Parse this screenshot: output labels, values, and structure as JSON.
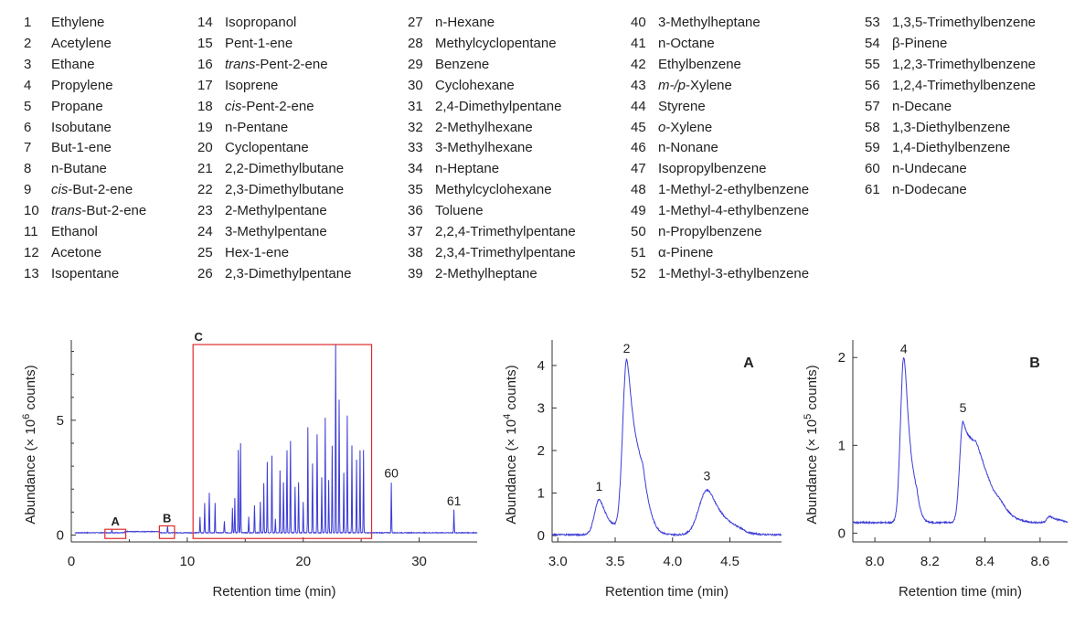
{
  "compound_legend": [
    {
      "n": "1",
      "name": "Ethylene"
    },
    {
      "n": "2",
      "name": "Acetylene"
    },
    {
      "n": "3",
      "name": "Ethane"
    },
    {
      "n": "4",
      "name": "Propylene"
    },
    {
      "n": "5",
      "name": "Propane"
    },
    {
      "n": "6",
      "name": "Isobutane"
    },
    {
      "n": "7",
      "name": "But-1-ene"
    },
    {
      "n": "8",
      "name": "n-Butane"
    },
    {
      "n": "9",
      "italic": "cis",
      "name": "-But-2-ene"
    },
    {
      "n": "10",
      "italic": "trans",
      "name": "-But-2-ene"
    },
    {
      "n": "11",
      "name": "Ethanol"
    },
    {
      "n": "12",
      "name": "Acetone"
    },
    {
      "n": "13",
      "name": "Isopentane"
    },
    {
      "n": "14",
      "name": "Isopropanol"
    },
    {
      "n": "15",
      "name": "Pent-1-ene"
    },
    {
      "n": "16",
      "italic": "trans",
      "name": "-Pent-2-ene"
    },
    {
      "n": "17",
      "name": "Isoprene"
    },
    {
      "n": "18",
      "italic": "cis",
      "name": "-Pent-2-ene"
    },
    {
      "n": "19",
      "name": "n-Pentane"
    },
    {
      "n": "20",
      "name": "Cyclopentane"
    },
    {
      "n": "21",
      "name": "2,2-Dimethylbutane"
    },
    {
      "n": "22",
      "name": "2,3-Dimethylbutane"
    },
    {
      "n": "23",
      "name": "2-Methylpentane"
    },
    {
      "n": "24",
      "name": "3-Methylpentane"
    },
    {
      "n": "25",
      "name": "Hex-1-ene"
    },
    {
      "n": "26",
      "name": "2,3-Dimethylpentane"
    },
    {
      "n": "27",
      "name": "n-Hexane"
    },
    {
      "n": "28",
      "name": "Methylcyclopentane"
    },
    {
      "n": "29",
      "name": "Benzene"
    },
    {
      "n": "30",
      "name": "Cyclohexane"
    },
    {
      "n": "31",
      "name": "2,4-Dimethylpentane"
    },
    {
      "n": "32",
      "name": "2-Methylhexane"
    },
    {
      "n": "33",
      "name": "3-Methylhexane"
    },
    {
      "n": "34",
      "name": "n-Heptane"
    },
    {
      "n": "35",
      "name": "Methylcyclohexane"
    },
    {
      "n": "36",
      "name": "Toluene"
    },
    {
      "n": "37",
      "name": "2,2,4-Trimethylpentane"
    },
    {
      "n": "38",
      "name": "2,3,4-Trimethylpentane"
    },
    {
      "n": "39",
      "name": "2-Methylheptane"
    },
    {
      "n": "40",
      "name": "3-Methylheptane"
    },
    {
      "n": "41",
      "name": "n-Octane"
    },
    {
      "n": "42",
      "name": "Ethylbenzene"
    },
    {
      "n": "43",
      "italic": "m-/p",
      "name": "-Xylene"
    },
    {
      "n": "44",
      "name": "Styrene"
    },
    {
      "n": "45",
      "italic": "o",
      "name": "-Xylene"
    },
    {
      "n": "46",
      "name": "n-Nonane"
    },
    {
      "n": "47",
      "name": "Isopropylbenzene"
    },
    {
      "n": "48",
      "name": "1-Methyl-2-ethylbenzene"
    },
    {
      "n": "49",
      "name": "1-Methyl-4-ethylbenzene"
    },
    {
      "n": "50",
      "name": "n-Propylbenzene"
    },
    {
      "n": "51",
      "name": "α-Pinene"
    },
    {
      "n": "52",
      "name": "1-Methyl-3-ethylbenzene"
    },
    {
      "n": "53",
      "name": "1,3,5-Trimethylbenzene"
    },
    {
      "n": "54",
      "name": "β-Pinene"
    },
    {
      "n": "55",
      "name": "1,2,3-Trimethylbenzene"
    },
    {
      "n": "56",
      "name": "1,2,4-Trimethylbenzene"
    },
    {
      "n": "57",
      "name": "n-Decane"
    },
    {
      "n": "58",
      "name": "1,3-Diethylbenzene"
    },
    {
      "n": "59",
      "name": "1,4-Diethylbenzene"
    },
    {
      "n": "60",
      "name": "n-Undecane"
    },
    {
      "n": "61",
      "name": "n-Dodecane"
    }
  ],
  "colors": {
    "trace": "#3b3bd6",
    "box": "#e0292b",
    "axis": "#333333"
  },
  "chart_data": [
    {
      "type": "line",
      "panel": "main",
      "xlabel": "Retention time (min)",
      "ylabel_parts": [
        "Abundance (× 10",
        "6",
        " counts)"
      ],
      "xlim": [
        0,
        35
      ],
      "ylim": [
        -0.3,
        8.5
      ],
      "xticks": [
        0,
        10,
        20,
        30
      ],
      "yticks": [
        0,
        5
      ],
      "baseline": 0.1,
      "peaks": [
        [
          3.5,
          0.15
        ],
        [
          8.3,
          0.3
        ],
        [
          11.1,
          0.7
        ],
        [
          11.5,
          1.3
        ],
        [
          11.9,
          1.75
        ],
        [
          12.4,
          1.3
        ],
        [
          13.2,
          0.5
        ],
        [
          13.9,
          1.1
        ],
        [
          14.1,
          1.5
        ],
        [
          14.4,
          3.6
        ],
        [
          14.6,
          3.9
        ],
        [
          15.3,
          0.7
        ],
        [
          15.8,
          1.2
        ],
        [
          16.3,
          1.35
        ],
        [
          16.6,
          2.15
        ],
        [
          16.9,
          3.1
        ],
        [
          17.3,
          3.35
        ],
        [
          17.6,
          0.6
        ],
        [
          18.0,
          2.7
        ],
        [
          18.3,
          2.2
        ],
        [
          18.6,
          3.6
        ],
        [
          18.9,
          4.0
        ],
        [
          19.3,
          2.0
        ],
        [
          19.6,
          2.2
        ],
        [
          20.0,
          1.35
        ],
        [
          20.4,
          4.6
        ],
        [
          20.8,
          3.0
        ],
        [
          21.2,
          4.3
        ],
        [
          21.6,
          2.4
        ],
        [
          21.9,
          5.0
        ],
        [
          22.2,
          2.3
        ],
        [
          22.5,
          3.8
        ],
        [
          22.8,
          8.2
        ],
        [
          23.1,
          5.8
        ],
        [
          23.5,
          2.6
        ],
        [
          23.8,
          5.1
        ],
        [
          24.2,
          3.8
        ],
        [
          24.6,
          3.2
        ],
        [
          24.9,
          3.6
        ],
        [
          25.2,
          3.6
        ],
        [
          27.6,
          2.2
        ],
        [
          33.0,
          1.0
        ]
      ],
      "peak_labels": [
        {
          "x": 27.6,
          "y": 2.5,
          "text": "60"
        },
        {
          "x": 33.0,
          "y": 1.3,
          "text": "61"
        }
      ],
      "zoom_boxes": [
        {
          "label": "A",
          "x0": 2.9,
          "x1": 4.7,
          "y0": -0.15,
          "y1": 0.25
        },
        {
          "label": "B",
          "x0": 7.6,
          "x1": 8.9,
          "y0": -0.15,
          "y1": 0.4
        },
        {
          "label": "C",
          "x0": 10.5,
          "x1": 25.9,
          "y0": -0.15,
          "y1": 8.3
        }
      ]
    },
    {
      "type": "line",
      "panel": "A",
      "xlabel": "Retention time (min)",
      "ylabel_parts": [
        "Abundance (× 10",
        "4",
        " counts)"
      ],
      "xlim": [
        2.95,
        4.95
      ],
      "ylim": [
        -0.15,
        4.6
      ],
      "xticks": [
        3.0,
        3.5,
        4.0,
        4.5
      ],
      "yticks": [
        0,
        1,
        2,
        3,
        4
      ],
      "baseline": 0.02,
      "peaks": [
        {
          "rt": 3.36,
          "height": 0.82,
          "sigma": 0.04,
          "tail": 0.05
        },
        {
          "rt": 3.6,
          "height": 4.1,
          "sigma": 0.035,
          "tail": 0.07
        },
        {
          "rt": 4.3,
          "height": 1.05,
          "sigma": 0.07,
          "tail": 0.08
        }
      ],
      "peak_labels": [
        {
          "x": 3.36,
          "y": 1.05,
          "text": "1"
        },
        {
          "x": 3.6,
          "y": 4.3,
          "text": "2"
        },
        {
          "x": 4.3,
          "y": 1.3,
          "text": "3"
        }
      ],
      "panel_letter": "A"
    },
    {
      "type": "line",
      "panel": "B",
      "xlabel": "Retention time (min)",
      "ylabel_parts": [
        "Abundance (× 10",
        "5",
        " counts)"
      ],
      "xlim": [
        7.92,
        8.7
      ],
      "ylim": [
        -0.1,
        2.2
      ],
      "xticks": [
        8.0,
        8.2,
        8.4,
        8.6
      ],
      "yticks": [
        0,
        1,
        2
      ],
      "baseline": 0.12,
      "peaks": [
        {
          "rt": 8.105,
          "height": 1.88,
          "sigma": 0.012,
          "tail": 0.015
        },
        {
          "rt": 8.32,
          "height": 1.15,
          "sigma": 0.012,
          "tail": 0.06
        },
        {
          "rt": 8.46,
          "height": 0.07,
          "sigma": 0.02,
          "tail": 0.02
        },
        {
          "rt": 8.635,
          "height": 0.07,
          "sigma": 0.01,
          "tail": 0.02
        }
      ],
      "peak_labels": [
        {
          "x": 8.105,
          "y": 2.05,
          "text": "4"
        },
        {
          "x": 8.32,
          "y": 1.38,
          "text": "5"
        }
      ],
      "panel_letter": "B"
    }
  ]
}
